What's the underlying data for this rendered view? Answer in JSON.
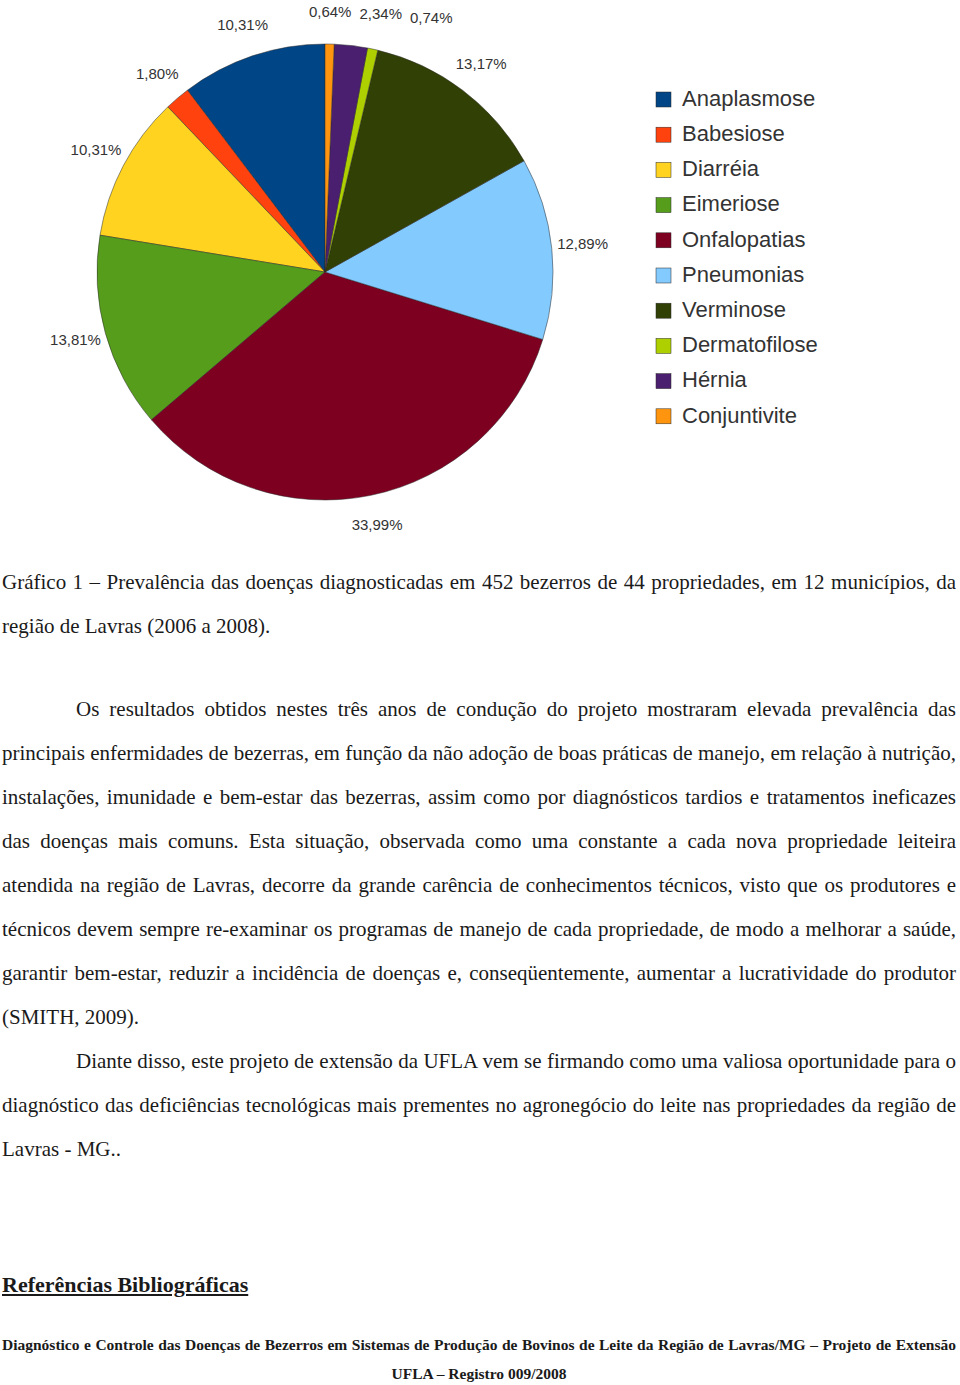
{
  "chart_data": {
    "type": "pie",
    "categories": [
      "Anaplasmose",
      "Babesiose",
      "Diarréia",
      "Eimeriose",
      "Onfalopatias",
      "Pneumonias",
      "Verminose",
      "Dermatofilose",
      "Hérnia",
      "Conjuntivite"
    ],
    "values": [
      10.31,
      1.8,
      10.31,
      13.81,
      33.99,
      12.89,
      13.17,
      0.74,
      2.34,
      0.64
    ],
    "value_labels": [
      "10,31%",
      "1,80%",
      "10,31%",
      "13,81%",
      "33,99%",
      "12,89%",
      "13,17%",
      "0,74%",
      "2,34%",
      "0,64%"
    ],
    "colors": [
      "#004586",
      "#ff420e",
      "#ffd320",
      "#579d1c",
      "#7e0021",
      "#83caff",
      "#314004",
      "#aecf00",
      "#4b1f6f",
      "#ff950e"
    ],
    "data_labels": true,
    "legend": "right"
  },
  "caption": "Gráfico 1 – Prevalência das doenças diagnosticadas em 452 bezerros de 44 propriedades, em 12 municípios, da região de Lavras (2006 a 2008).",
  "paragraphs": [
    "Os resultados obtidos nestes três anos de condução do projeto mostraram elevada prevalência das principais enfermidades de bezerras, em função da não adoção de boas práticas de manejo, em relação à nutrição, instalações, imunidade e bem-estar das bezerras, assim como por diagnósticos tardios e tratamentos ineficazes das doenças mais comuns. Esta situação, observada como uma constante a cada nova propriedade leiteira atendida na região de Lavras, decorre da grande carência de conhecimentos técnicos, visto que os produtores e técnicos devem sempre re-examinar os programas de manejo de cada propriedade, de modo a melhorar a saúde, garantir bem-estar, reduzir a incidência de doenças e, conseqüentemente, aumentar a lucratividade do produtor (SMITH, 2009).",
    "Diante disso, este projeto de extensão da UFLA vem se firmando como uma valiosa oportunidade para o diagnóstico das deficiências tecnológicas mais prementes no agronegócio do leite nas propriedades da região de Lavras - MG.."
  ],
  "heading": "Referências Bibliográficas",
  "footer": "Diagnóstico e Controle das Doenças de Bezerros em Sistemas de Produção de Bovinos de Leite da Região de Lavras/MG – Projeto de Extensão UFLA – Registro 009/2008"
}
